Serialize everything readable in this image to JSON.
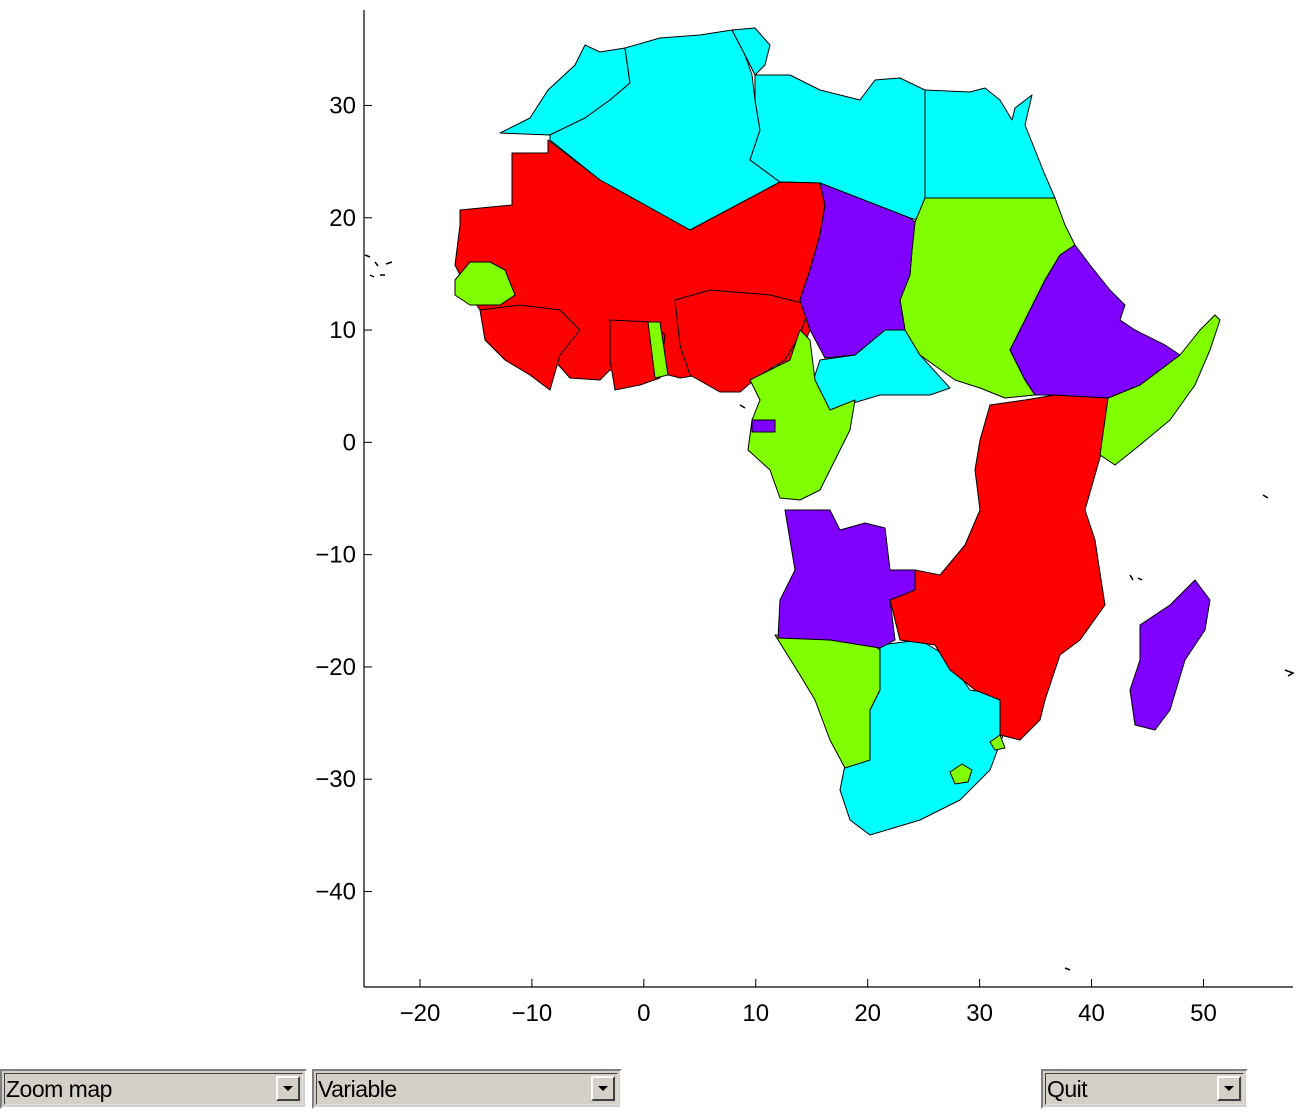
{
  "map": {
    "x_ticks": [
      "−20",
      "−10",
      "0",
      "10",
      "20",
      "30",
      "40",
      "50"
    ],
    "y_ticks": [
      "30",
      "20",
      "10",
      "0",
      "−10",
      "−20",
      "−30",
      "−40"
    ],
    "x_range": [
      -25,
      58
    ],
    "y_range": [
      -48.5,
      38.5
    ],
    "palette": {
      "red": "#ff0000",
      "cyan": "#00ffff",
      "green": "#80ff00",
      "purple": "#8000ff"
    }
  },
  "controls": {
    "zoom_label": "Zoom map",
    "variable_label": "Variable",
    "quit_label": "Quit"
  }
}
